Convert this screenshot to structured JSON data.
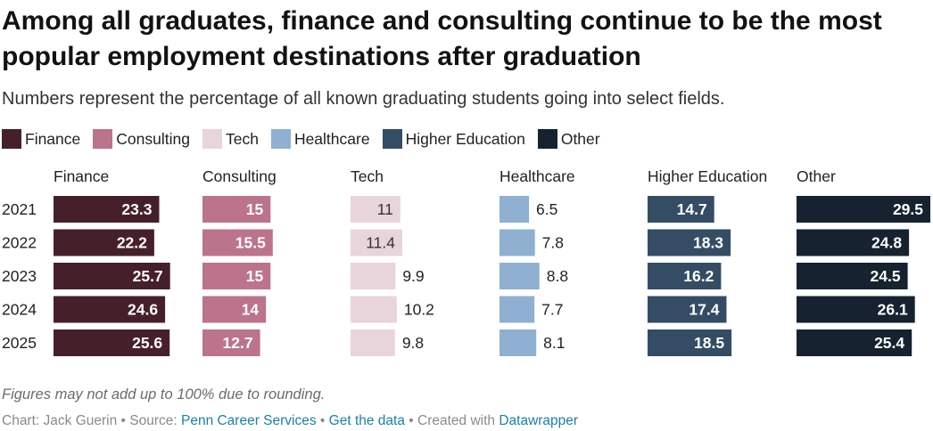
{
  "title": "Among all graduates, finance and consulting continue to be the most popular employment destinations after graduation",
  "subtitle": "Numbers represent the percentage of all known graduating students going into select fields.",
  "legend": [
    {
      "label": "Finance",
      "color": "#45202b"
    },
    {
      "label": "Consulting",
      "color": "#bc738c"
    },
    {
      "label": "Tech",
      "color": "#e8d5dc"
    },
    {
      "label": "Healthcare",
      "color": "#8fb0d0"
    },
    {
      "label": "Higher Education",
      "color": "#344c64"
    },
    {
      "label": "Other",
      "color": "#16222f"
    }
  ],
  "chart_data": {
    "type": "bar",
    "orientation": "horizontal",
    "layout": "small-multiples",
    "categories": [
      "2021",
      "2022",
      "2023",
      "2024",
      "2025"
    ],
    "series": [
      {
        "name": "Finance",
        "color": "#45202b",
        "label_color": "#ffffff",
        "values": [
          23.3,
          22.2,
          25.7,
          24.6,
          25.6
        ]
      },
      {
        "name": "Consulting",
        "color": "#bc738c",
        "label_color": "#ffffff",
        "values": [
          15,
          15.5,
          15,
          14,
          12.7
        ]
      },
      {
        "name": "Tech",
        "color": "#e8d5dc",
        "label_color": "#333333",
        "values": [
          11,
          11.4,
          9.9,
          10.2,
          9.8
        ]
      },
      {
        "name": "Healthcare",
        "color": "#8fb0d0",
        "label_color": "#ffffff",
        "values": [
          6.5,
          7.8,
          8.8,
          7.7,
          8.1
        ]
      },
      {
        "name": "Higher Education",
        "color": "#344c64",
        "label_color": "#ffffff",
        "values": [
          14.7,
          18.3,
          16.2,
          17.4,
          18.5
        ]
      },
      {
        "name": "Other",
        "color": "#16222f",
        "label_color": "#ffffff",
        "values": [
          29.5,
          24.8,
          24.5,
          26.1,
          25.4
        ]
      }
    ],
    "xlim": [
      0,
      29.5
    ],
    "data_labels": true,
    "grid": false
  },
  "footnote": "Figures may not add up to 100% due to rounding.",
  "credits": {
    "prefix": "Chart: Jack Guerin • Source: ",
    "source": "Penn Career Services",
    "sep1": " • ",
    "get_data": "Get the data",
    "sep2": " • Created with ",
    "tool": "Datawrapper"
  }
}
